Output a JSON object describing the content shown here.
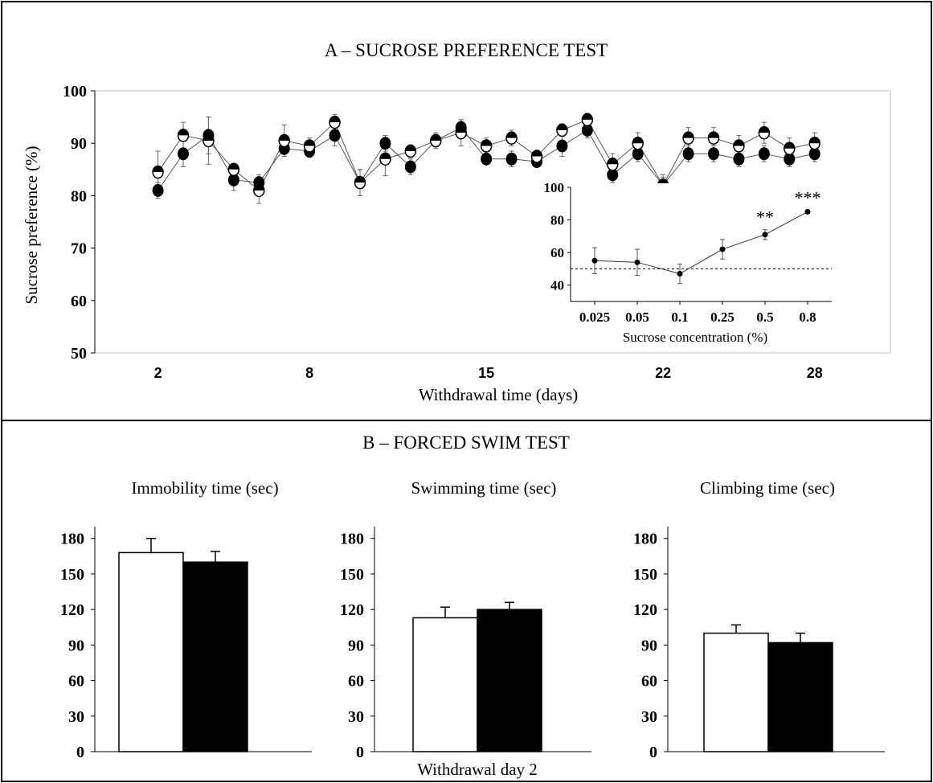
{
  "panel_a": {
    "title": "A – SUCROSE PREFERENCE TEST",
    "xlabel": "Withdrawal time (days)",
    "ylabel": "Sucrose preference (%)",
    "inset_xlabel": "Sucrose concentration (%)"
  },
  "panel_b": {
    "title": "B – FORCED SWIM TEST",
    "xlabel": "Withdrawal day 2"
  },
  "chart_data": [
    {
      "type": "line",
      "title": "A – SUCROSE PREFERENCE TEST",
      "xlabel": "Withdrawal time (days)",
      "ylabel": "Sucrose preference (%)",
      "xticks": [
        2,
        8,
        15,
        22,
        28
      ],
      "yticks": [
        50,
        60,
        70,
        80,
        90,
        100
      ],
      "xlim": [
        -0.5,
        31
      ],
      "ylim": [
        50,
        100
      ],
      "x": [
        2,
        3,
        4,
        5,
        6,
        7,
        8,
        9,
        10,
        11,
        12,
        13,
        14,
        15,
        16,
        17,
        18,
        19,
        20,
        21,
        22,
        23,
        24,
        25,
        26,
        27,
        28
      ],
      "series": [
        {
          "marker": "open-circle",
          "values": [
            84.5,
            91.5,
            90.5,
            85,
            81,
            90.5,
            89.5,
            94,
            82.5,
            87,
            88.5,
            90.5,
            92,
            89.5,
            91,
            87.5,
            92.5,
            94.5,
            86,
            90,
            82,
            91,
            91,
            89.5,
            92,
            89,
            90
          ],
          "errors": [
            4,
            2.5,
            4.5,
            1,
            2.5,
            3,
            1.5,
            1.5,
            2.5,
            3.2,
            1.2,
            1.5,
            2.5,
            1.5,
            1.5,
            1,
            1.2,
            1.2,
            2,
            2,
            2,
            2,
            2,
            2,
            2,
            2,
            2
          ]
        },
        {
          "marker": "filled-circle",
          "values": [
            81,
            88,
            91.5,
            83,
            82.5,
            89,
            88.5,
            91.5,
            82.5,
            90,
            85.5,
            90.5,
            93,
            87,
            87,
            86.5,
            89.5,
            92.5,
            84,
            88,
            82,
            88,
            88,
            87,
            88,
            87,
            88
          ],
          "errors": [
            1.5,
            2.5,
            3.5,
            2,
            1.5,
            1.5,
            1.2,
            2,
            2.5,
            1.5,
            1.5,
            1.2,
            1.5,
            1,
            1.5,
            1,
            2,
            1.5,
            1.5,
            1.5,
            1.5,
            1.5,
            1.5,
            1.5,
            1.5,
            1.5,
            1.5
          ]
        }
      ],
      "inset": {
        "type": "line",
        "xlabel": "Sucrose concentration (%)",
        "categories": [
          "0.025",
          "0.05",
          "0.1",
          "0.25",
          "0.5",
          "0.8"
        ],
        "values": [
          55,
          54,
          47,
          62,
          71,
          85
        ],
        "errors": [
          8,
          8,
          6,
          6,
          3,
          1
        ],
        "ylim": [
          30,
          100
        ],
        "yticks": [
          40,
          60,
          80,
          100
        ],
        "reference_line": 50,
        "annotations": [
          "",
          "",
          "",
          "",
          "**",
          "***"
        ]
      }
    },
    {
      "type": "bar",
      "title": "Immobility time (sec)",
      "yticks": [
        0,
        30,
        60,
        90,
        120,
        150,
        180
      ],
      "ylim": [
        0,
        190
      ],
      "series": [
        {
          "fill": "open",
          "value": 168,
          "error": 12
        },
        {
          "fill": "filled",
          "value": 160,
          "error": 9
        }
      ]
    },
    {
      "type": "bar",
      "title": "Swimming time (sec)",
      "yticks": [
        0,
        30,
        60,
        90,
        120,
        150,
        180
      ],
      "ylim": [
        0,
        190
      ],
      "series": [
        {
          "fill": "open",
          "value": 113,
          "error": 9
        },
        {
          "fill": "filled",
          "value": 120,
          "error": 6
        }
      ]
    },
    {
      "type": "bar",
      "title": "Climbing time (sec)",
      "yticks": [
        0,
        30,
        60,
        90,
        120,
        150,
        180
      ],
      "ylim": [
        0,
        190
      ],
      "series": [
        {
          "fill": "open",
          "value": 100,
          "error": 7
        },
        {
          "fill": "filled",
          "value": 92,
          "error": 8
        }
      ]
    }
  ]
}
